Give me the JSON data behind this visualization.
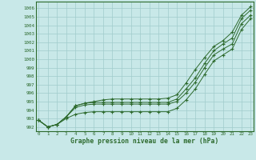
{
  "x": [
    0,
    1,
    2,
    3,
    4,
    5,
    6,
    7,
    8,
    9,
    10,
    11,
    12,
    13,
    14,
    15,
    16,
    17,
    18,
    19,
    20,
    21,
    22,
    23
  ],
  "line1": [
    992.8,
    992.0,
    992.3,
    993.2,
    994.5,
    994.8,
    995.0,
    995.2,
    995.3,
    995.3,
    995.3,
    995.3,
    995.3,
    995.3,
    995.4,
    995.8,
    997.2,
    998.8,
    1000.2,
    1001.5,
    1002.2,
    1003.2,
    1005.2,
    1006.2
  ],
  "line2": [
    992.8,
    992.0,
    992.3,
    993.2,
    994.5,
    994.8,
    994.9,
    994.9,
    994.9,
    994.9,
    994.9,
    994.9,
    994.9,
    994.9,
    994.9,
    995.3,
    996.5,
    997.8,
    999.5,
    1001.0,
    1001.8,
    1002.5,
    1004.8,
    1005.8
  ],
  "line3": [
    992.8,
    992.0,
    992.3,
    993.2,
    994.3,
    994.6,
    994.7,
    994.7,
    994.7,
    994.7,
    994.7,
    994.7,
    994.7,
    994.7,
    994.7,
    995.0,
    996.0,
    997.3,
    999.0,
    1000.5,
    1001.2,
    1001.8,
    1004.2,
    1005.2
  ],
  "line4": [
    992.8,
    992.0,
    992.3,
    993.0,
    993.5,
    993.7,
    993.8,
    993.8,
    993.8,
    993.8,
    993.8,
    993.8,
    993.8,
    993.8,
    993.8,
    994.2,
    995.2,
    996.5,
    998.2,
    999.8,
    1000.5,
    1001.2,
    1003.5,
    1004.8
  ],
  "line_color": "#2d6a2d",
  "bg_color": "#c8e8e8",
  "grid_color": "#a0cccc",
  "ylabel_min": 992,
  "ylabel_max": 1006,
  "xlabel_label": "Graphe pression niveau de la mer (hPa)"
}
